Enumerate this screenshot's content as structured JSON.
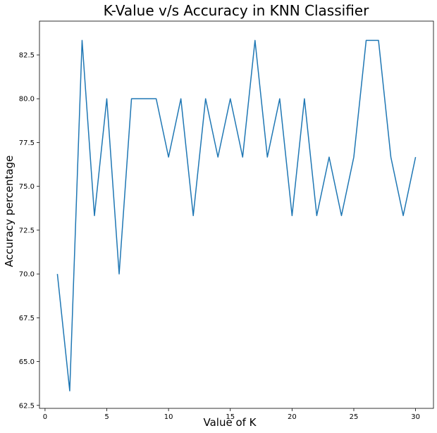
{
  "chart_data": {
    "type": "line",
    "title": "K-Value v/s Accuracy in KNN Classifier",
    "xlabel": "Value of K",
    "ylabel": "Accuracy percentage",
    "xlim": [
      -0.45,
      31.45
    ],
    "ylim": [
      62.33,
      84.43
    ],
    "xticks": [
      0,
      5,
      10,
      15,
      20,
      25,
      30
    ],
    "yticks": [
      62.5,
      65.0,
      67.5,
      70.0,
      72.5,
      75.0,
      77.5,
      80.0,
      82.5
    ],
    "grid": false,
    "line_color": "#1f77b4",
    "series": [
      {
        "x": [
          1,
          2,
          3,
          4,
          5,
          6,
          7,
          8,
          9,
          10,
          11,
          12,
          13,
          14,
          15,
          16,
          17,
          18,
          19,
          20,
          21,
          22,
          23,
          24,
          25,
          26,
          27,
          28,
          29,
          30
        ],
        "values": [
          70.0,
          63.33,
          83.33,
          73.33,
          80.0,
          70.0,
          80.0,
          80.0,
          80.0,
          76.67,
          80.0,
          73.33,
          80.0,
          76.67,
          80.0,
          76.67,
          83.33,
          76.67,
          80.0,
          73.33,
          80.0,
          73.33,
          76.67,
          73.33,
          76.67,
          83.33,
          83.33,
          76.67,
          73.33,
          76.67
        ]
      }
    ]
  }
}
